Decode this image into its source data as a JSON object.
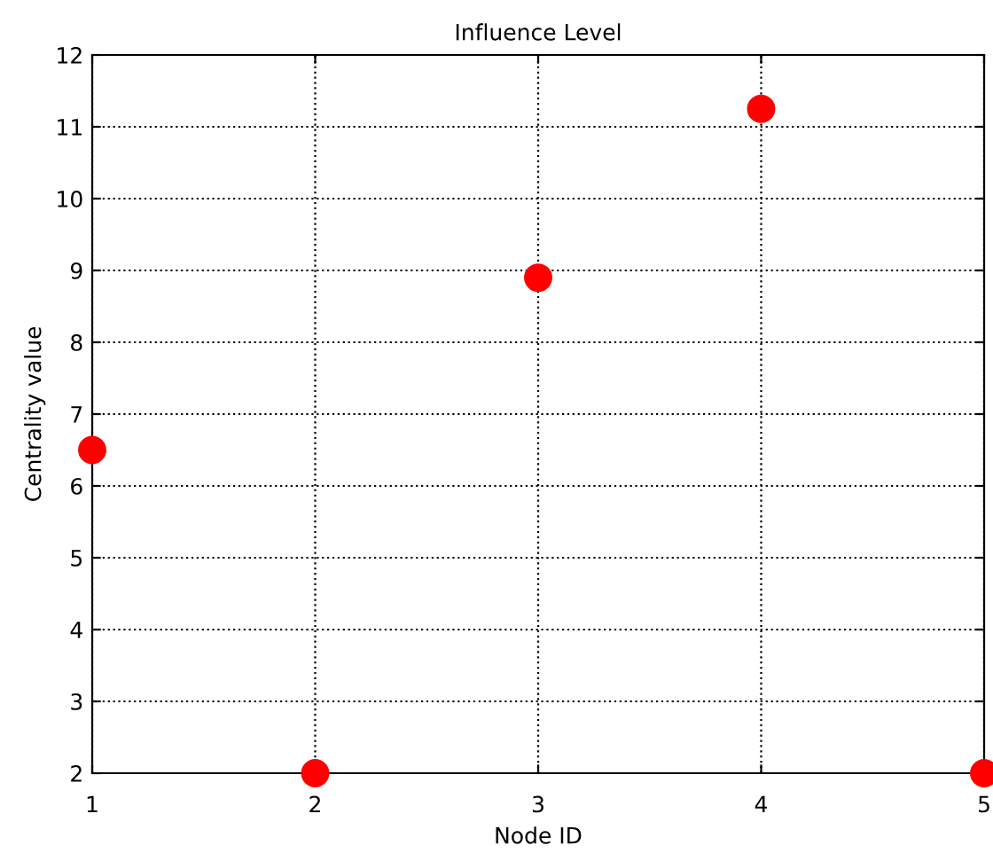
{
  "chart_data": {
    "type": "scatter",
    "title": "Influence Level",
    "xlabel": "Node ID",
    "ylabel": "Centrality value",
    "x": [
      1,
      2,
      3,
      4,
      5
    ],
    "series": [
      {
        "color": "#ff0000",
        "values": [
          6.5,
          2,
          8.9,
          11.25,
          2
        ]
      }
    ],
    "xlim": [
      1,
      5
    ],
    "xticks": [
      1,
      2,
      3,
      4,
      5
    ],
    "ylim": [
      2,
      12
    ],
    "yticks": [
      2,
      3,
      4,
      5,
      6,
      7,
      8,
      9,
      10,
      11,
      12
    ],
    "grid": true,
    "line_style": "dotted",
    "marker": "circle"
  }
}
